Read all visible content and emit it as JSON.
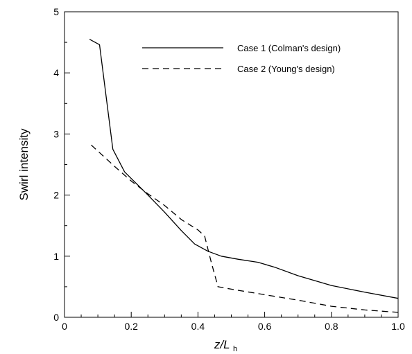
{
  "chart_data": {
    "type": "line",
    "xlabel": {
      "main": "z/L",
      "sub": "h"
    },
    "ylabel": "Swirl intensity",
    "xlim": [
      0,
      1.0
    ],
    "ylim": [
      0,
      5
    ],
    "x_ticks": [
      {
        "value": 0,
        "label": "0"
      },
      {
        "value": 0.2,
        "label": "0.2"
      },
      {
        "value": 0.4,
        "label": "0.4"
      },
      {
        "value": 0.6,
        "label": "0.6"
      },
      {
        "value": 0.8,
        "label": "0.8"
      },
      {
        "value": 1.0,
        "label": "1.0"
      }
    ],
    "y_ticks": [
      {
        "value": 0,
        "label": "0"
      },
      {
        "value": 1,
        "label": "1"
      },
      {
        "value": 2,
        "label": "2"
      },
      {
        "value": 3,
        "label": "3"
      },
      {
        "value": 4,
        "label": "4"
      },
      {
        "value": 5,
        "label": "5"
      }
    ],
    "grid": false,
    "legend_position": "top-right",
    "series": [
      {
        "name": "Case 1 (Colman's design)",
        "style": "solid",
        "color": "#000000",
        "x": [
          0.075,
          0.105,
          0.145,
          0.18,
          0.25,
          0.3,
          0.35,
          0.39,
          0.43,
          0.47,
          0.52,
          0.58,
          0.63,
          0.7,
          0.8,
          0.9,
          1.0
        ],
        "y": [
          4.55,
          4.46,
          2.75,
          2.38,
          2.0,
          1.72,
          1.42,
          1.2,
          1.08,
          1.0,
          0.95,
          0.9,
          0.82,
          0.68,
          0.52,
          0.41,
          0.31
        ]
      },
      {
        "name": "Case 2 (Young's design)",
        "style": "dashed",
        "color": "#000000",
        "x": [
          0.08,
          0.15,
          0.2,
          0.25,
          0.3,
          0.35,
          0.4,
          0.42,
          0.44,
          0.46,
          0.5,
          0.6,
          0.7,
          0.8,
          0.9,
          1.0
        ],
        "y": [
          2.82,
          2.47,
          2.23,
          2.02,
          1.83,
          1.6,
          1.43,
          1.33,
          0.9,
          0.5,
          0.46,
          0.37,
          0.28,
          0.18,
          0.12,
          0.08
        ]
      }
    ]
  }
}
